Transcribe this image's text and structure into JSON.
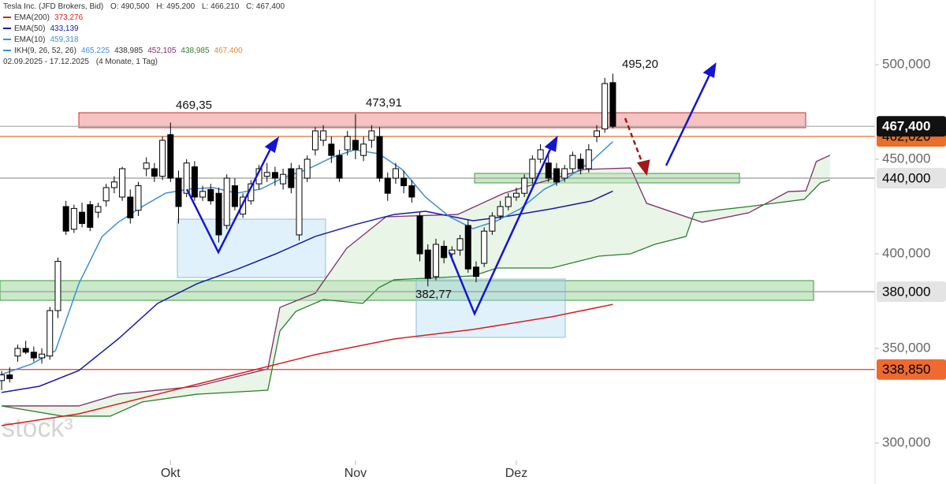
{
  "chart_data": {
    "type": "candlestick",
    "header": {
      "title": "Tesla Inc. (JFD Brokers, Bid)",
      "ohlc": [
        "O: 490,500",
        "H: 495,200",
        "L: 466,210",
        "C: 467,400"
      ],
      "period": "02.09.2025 - 17.12.2025",
      "period_note": "(4 Monate, 1 Tag)"
    },
    "watermark": "stock³",
    "xlim": [
      -0.2,
      108.6
    ],
    "xticks": [
      {
        "value": 21,
        "label": "Okt"
      },
      {
        "value": 44,
        "label": "Nov"
      },
      {
        "value": 64,
        "label": "Dez"
      }
    ],
    "ylim": [
      278.33,
      534.17
    ],
    "yticks": [
      {
        "value": 300,
        "label": "300,000"
      },
      {
        "value": 350,
        "label": "350,000"
      },
      {
        "value": 400,
        "label": "400,000"
      },
      {
        "value": 450,
        "label": "450,000"
      },
      {
        "value": 500,
        "label": "500,000"
      }
    ],
    "grid": false,
    "candles": {
      "up_color": "#ffffff",
      "down_color": "#000000",
      "open": [
        333,
        336,
        346,
        350,
        348,
        345,
        346,
        370,
        425,
        413,
        422,
        426,
        422,
        428,
        435,
        430,
        430,
        423,
        445,
        445,
        441,
        463,
        440,
        432,
        446,
        430,
        434,
        432,
        415,
        436,
        421,
        428,
        437,
        441,
        443,
        437,
        445,
        410,
        440,
        455,
        460,
        458,
        452,
        455,
        460,
        452,
        460,
        462,
        440,
        440,
        440,
        436,
        420,
        402,
        388,
        404,
        400,
        402,
        415,
        393,
        395,
        412,
        420,
        425,
        430,
        432,
        440,
        450,
        448,
        445,
        440,
        445,
        450,
        445,
        462,
        466,
        490.5
      ],
      "high": [
        338,
        340,
        352,
        354,
        351,
        350,
        372,
        398,
        428,
        426,
        427,
        428,
        427,
        437,
        441,
        446,
        434,
        438,
        451,
        448,
        462,
        469.35,
        444,
        450,
        449,
        436,
        437,
        435,
        442,
        440,
        432,
        439,
        447,
        448,
        446,
        445,
        448,
        447,
        452,
        467,
        468,
        462,
        455,
        465,
        473.91,
        462,
        468,
        467,
        443,
        448,
        444,
        439,
        422,
        405,
        408,
        407,
        404,
        410,
        418,
        396,
        414,
        422,
        428,
        432,
        435,
        442,
        452,
        458,
        452,
        448,
        447,
        454,
        453,
        458,
        468,
        493,
        495.2
      ],
      "low": [
        328,
        332,
        343,
        347,
        343,
        342,
        344,
        366,
        410,
        411,
        414,
        412,
        419,
        425,
        432,
        428,
        416,
        420,
        441,
        438,
        439,
        438,
        416,
        430,
        428,
        428,
        426,
        406,
        413,
        423,
        419,
        426,
        434,
        438,
        436,
        434,
        432,
        407,
        438,
        452,
        457,
        448,
        438,
        452,
        450,
        449,
        456,
        438,
        428,
        437,
        432,
        427,
        396,
        382.77,
        386,
        395,
        396,
        399,
        390,
        385,
        393,
        410,
        418,
        423,
        428,
        430,
        437,
        448,
        438,
        436,
        438,
        443,
        442,
        443,
        459,
        464,
        466.21
      ],
      "close": [
        336,
        334,
        350,
        348,
        345,
        347,
        370,
        396,
        412,
        424,
        416,
        414,
        425,
        435,
        438,
        445,
        419,
        436,
        448,
        441,
        460,
        440,
        425,
        448,
        430,
        433,
        428,
        410,
        440,
        425,
        430,
        437,
        445,
        443,
        440,
        442,
        435,
        445,
        450,
        465,
        465,
        452,
        440,
        462,
        455,
        458,
        465,
        440,
        432,
        445,
        436,
        430,
        400,
        387,
        405,
        398,
        402,
        408,
        392,
        388,
        412,
        420,
        425,
        430,
        432,
        440,
        450,
        455,
        440,
        438,
        445,
        452,
        445,
        455,
        465,
        490,
        467.4
      ]
    },
    "series": [
      {
        "name": "EMA(200)",
        "value_label": "373,276",
        "color": "#d62020",
        "x": [
          0,
          9.6,
          19.4,
          29.2,
          39,
          48.8,
          58.6,
          68.4,
          76
        ],
        "values": [
          309.2,
          315.4,
          325.8,
          336.3,
          346.7,
          355,
          360,
          366.7,
          373.276
        ]
      },
      {
        "name": "EMA(50)",
        "value_label": "433,139",
        "color": "#1a1aa6",
        "x": [
          0,
          4.7,
          9.6,
          14.5,
          19.4,
          24.3,
          29.2,
          34.1,
          39,
          43.9,
          48.8,
          52.7,
          58.6,
          62.5,
          68.4,
          73.3,
          76
        ],
        "values": [
          326.7,
          330,
          338.3,
          355,
          373.8,
          384.2,
          391.7,
          400,
          409.2,
          415.4,
          420.8,
          422.5,
          417.5,
          419.6,
          423.8,
          427.9,
          433.139
        ]
      },
      {
        "name": "EMA(10)",
        "value_label": "459,318",
        "color": "#3d8fd6",
        "x": [
          0,
          3.7,
          6.7,
          9.6,
          12.5,
          14.5,
          17.5,
          20.4,
          23.3,
          26.3,
          29.2,
          32.2,
          35.1,
          38,
          41,
          43.9,
          46.9,
          49.8,
          52.7,
          55.7,
          58.6,
          61.6,
          64.5,
          67.5,
          70.4,
          73.3,
          76
        ],
        "values": [
          336.3,
          341.7,
          348.8,
          384.2,
          409.2,
          416.7,
          425,
          432.1,
          434.2,
          435,
          432.1,
          434.2,
          440.4,
          444.6,
          450.8,
          455,
          452.9,
          444.6,
          430,
          419.6,
          413.3,
          417.5,
          423.8,
          434.2,
          440.4,
          448.8,
          459.318
        ]
      }
    ],
    "ikh": {
      "name": "IKH(9, 26, 52, 26)",
      "value_labels": [
        "465,225",
        "438,985",
        "452,105",
        "438,985",
        "467,400"
      ],
      "value_label_colors": [
        "#3d8fd6",
        "#333333",
        "#7b2d6e",
        "#2e7d32",
        "#e08a2e"
      ],
      "cloud_color": "#cfe8c8",
      "lines": [
        {
          "color": "#7b2d6e",
          "x": [
            0,
            9.6,
            14.5,
            24.3,
            33.1,
            34.6,
            39,
            42.9,
            47.8,
            56.7,
            62.5,
            72.4,
            78.2,
            80.2,
            87.1,
            92.9,
            97.8,
            100,
            101.3,
            103
          ],
          "values": [
            319.6,
            319.6,
            325.8,
            330,
            339.2,
            371.7,
            379.2,
            402.9,
            419.6,
            420.8,
            432.1,
            444.6,
            445.4,
            426.7,
            416.7,
            421.7,
            432.9,
            433.3,
            448.8,
            452.105
          ]
        },
        {
          "color": "#2e7d32",
          "x": [
            0,
            7.6,
            13.5,
            17.5,
            24.3,
            33.1,
            33.6,
            34.6,
            36.6,
            40,
            44.9,
            46.9,
            48.8,
            58.6,
            61.6,
            68.4,
            74.3,
            78.2,
            81.2,
            85.1,
            86.1,
            92.9,
            99.8,
            101.8,
            103
          ],
          "values": [
            319.6,
            314.2,
            314.2,
            321.7,
            325.8,
            327.9,
            338.3,
            359.2,
            369.6,
            375.8,
            373.8,
            382.1,
            386.3,
            388.3,
            392.5,
            392.5,
            398.8,
            400,
            405,
            409.2,
            421.7,
            425,
            428.8,
            437.5,
            438.985
          ]
        }
      ]
    },
    "levels": [
      {
        "value": 462.02,
        "label": "462,020",
        "line_color": "#e8702a",
        "box_color": "#e8702a",
        "text_color": "#000000"
      },
      {
        "value": 467.4,
        "label": "467,400",
        "line_color": "#b0b0b0",
        "box_color": "#111111",
        "text_color": "#ffffff"
      },
      {
        "value": 440,
        "label": "440,000",
        "line_color": "#9a9a9a",
        "box_color": "#e4e4e4",
        "text_color": "#000000"
      },
      {
        "value": 380,
        "label": "380,000",
        "line_color": "#9a9a9a",
        "box_color": "#e4e4e4",
        "text_color": "#000000"
      },
      {
        "value": 338.85,
        "label": "338,850",
        "line_color": "#e0401c",
        "box_color": "#ee6a30",
        "text_color": "#000000"
      }
    ],
    "annotations": [
      "469,35",
      "473,91",
      "495,20",
      "382,77"
    ]
  }
}
